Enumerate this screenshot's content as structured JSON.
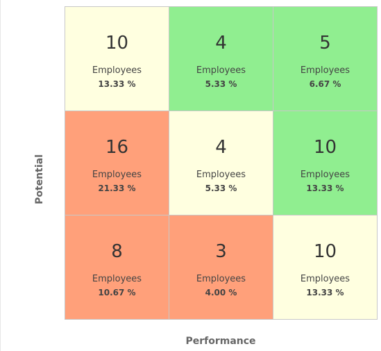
{
  "grid": {
    "x_label": "Performance",
    "y_label": "Potential",
    "rows": [
      [
        {
          "count": 10,
          "unit": "Employees",
          "percent": "13.33 %",
          "color": "#ffffe0"
        },
        {
          "count": 4,
          "unit": "Employees",
          "percent": "5.33 %",
          "color": "#90ee90"
        },
        {
          "count": 5,
          "unit": "Employees",
          "percent": "6.67 %",
          "color": "#90ee90"
        }
      ],
      [
        {
          "count": 16,
          "unit": "Employees",
          "percent": "21.33 %",
          "color": "#ffa07a"
        },
        {
          "count": 4,
          "unit": "Employees",
          "percent": "5.33 %",
          "color": "#ffffe0"
        },
        {
          "count": 10,
          "unit": "Employees",
          "percent": "13.33 %",
          "color": "#90ee90"
        }
      ],
      [
        {
          "count": 8,
          "unit": "Employees",
          "percent": "10.67 %",
          "color": "#ffa07a"
        },
        {
          "count": 3,
          "unit": "Employees",
          "percent": "4.00 %",
          "color": "#ffa07a"
        },
        {
          "count": 10,
          "unit": "Employees",
          "percent": "13.33 %",
          "color": "#ffffe0"
        }
      ]
    ]
  }
}
